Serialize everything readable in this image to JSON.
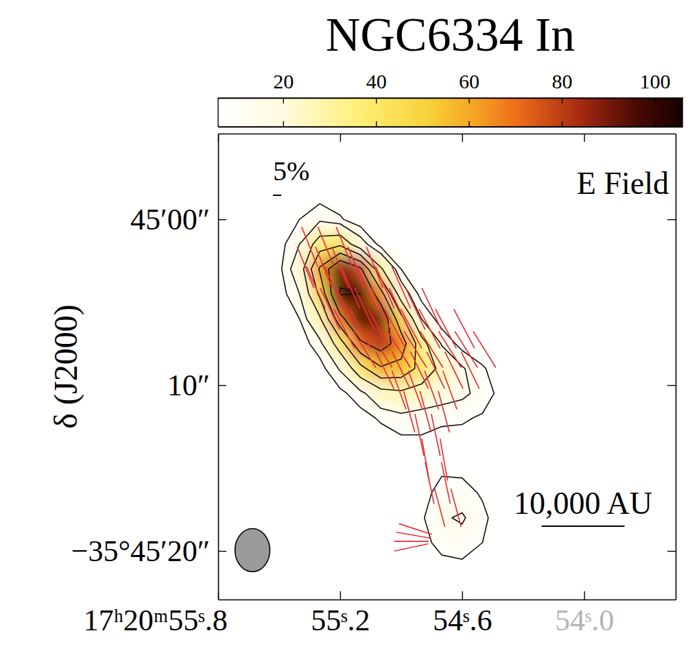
{
  "chart_data": {
    "type": "heatmap",
    "title": "NGC6334 In",
    "y_label": "δ (J2000)",
    "annotation": "E Field",
    "vector_scale": {
      "label": "5%",
      "value": 5
    },
    "scale_bar": {
      "label": "10,000 AU",
      "length": 5.0
    },
    "beam": {
      "major": 2.6,
      "minor": 2.1
    },
    "xlim": [
      55.8,
      53.55
    ],
    "ylim": [
      -5.17,
      22.93
    ],
    "xticks": [
      {
        "value": 55.8,
        "label": "17ʰ20ᵐ55ˢ.8"
      },
      {
        "value": 55.2,
        "label": "55ˢ.2"
      },
      {
        "value": 54.6,
        "label": "54ˢ.6"
      },
      {
        "value": 54.0,
        "label": "54ˢ.0"
      }
    ],
    "yticks": [
      {
        "value": 0,
        "label": "45′00″"
      },
      {
        "value": 10,
        "label": "10″"
      },
      {
        "value": 20,
        "label": "−35°45′20″"
      }
    ],
    "colorbar": {
      "range": [
        6,
        106
      ],
      "ticks": [
        20,
        40,
        60,
        80,
        100
      ]
    },
    "intensity": {
      "ra": [
        55.5,
        55.4,
        55.3,
        55.2,
        55.1,
        55.0,
        54.9,
        54.8,
        54.7,
        54.6,
        54.5,
        54.4
      ],
      "dec": [
        -3,
        -1.5,
        0,
        1.5,
        3,
        4.5,
        6,
        7.5,
        9,
        10.5,
        12,
        13.5,
        15,
        16.5,
        18,
        19.5,
        21,
        22.5
      ],
      "values": [
        [
          1,
          1,
          1,
          1,
          1,
          0,
          0,
          0,
          0,
          0,
          0,
          0
        ],
        [
          2,
          4,
          5,
          3,
          1,
          0,
          0,
          0,
          0,
          0,
          0,
          0
        ],
        [
          3,
          8,
          13,
          9,
          3,
          1,
          0,
          0,
          0,
          0,
          0,
          0
        ],
        [
          5,
          15,
          38,
          42,
          20,
          5,
          1,
          0,
          0,
          0,
          0,
          0
        ],
        [
          6,
          22,
          62,
          92,
          78,
          32,
          8,
          2,
          0,
          0,
          0,
          0
        ],
        [
          4,
          15,
          48,
          96,
          95,
          66,
          22,
          5,
          1,
          0,
          0,
          0
        ],
        [
          2,
          8,
          28,
          70,
          94,
          88,
          50,
          15,
          4,
          1,
          0,
          0
        ],
        [
          1,
          4,
          12,
          38,
          72,
          82,
          68,
          36,
          14,
          5,
          2,
          0
        ],
        [
          0,
          2,
          5,
          16,
          40,
          58,
          55,
          40,
          26,
          16,
          9,
          3
        ],
        [
          0,
          1,
          2,
          6,
          12,
          24,
          27,
          24,
          20,
          17,
          12,
          5
        ],
        [
          0,
          0,
          1,
          2,
          5,
          9,
          12,
          10,
          9,
          9,
          7,
          3
        ],
        [
          0,
          0,
          0,
          1,
          2,
          4,
          6,
          7,
          6,
          5,
          3,
          1
        ],
        [
          0,
          0,
          0,
          0,
          1,
          2,
          4,
          6,
          7,
          6,
          3,
          1
        ],
        [
          0,
          0,
          0,
          0,
          0,
          1,
          3,
          6,
          10,
          11,
          7,
          2
        ],
        [
          0,
          0,
          0,
          0,
          0,
          1,
          3,
          7,
          14,
          16,
          10,
          3
        ],
        [
          0,
          0,
          0,
          0,
          0,
          1,
          2,
          5,
          11,
          12,
          8,
          2
        ],
        [
          0,
          0,
          0,
          0,
          0,
          0,
          1,
          3,
          5,
          6,
          4,
          1
        ],
        [
          0,
          0,
          0,
          0,
          0,
          0,
          0,
          1,
          2,
          2,
          1,
          0
        ]
      ]
    },
    "contours": {
      "levels": [
        8,
        15,
        30,
        45,
        60,
        75,
        95
      ]
    },
    "vectors": {
      "color": "#e8303a",
      "ra": [
        55.35,
        55.27,
        55.18,
        55.37,
        55.28,
        55.2,
        55.12,
        55.03,
        55.32,
        55.23,
        55.15,
        55.07,
        54.98,
        54.9,
        55.25,
        55.17,
        55.08,
        55.0,
        54.91,
        54.83,
        54.75,
        55.18,
        55.1,
        55.01,
        54.93,
        54.85,
        54.76,
        54.68,
        54.59,
        55.08,
        55.0,
        54.91,
        54.83,
        54.75,
        54.66,
        54.58,
        54.49,
        54.98,
        54.9,
        54.81,
        54.73,
        54.64,
        54.56,
        54.91,
        54.83,
        54.75,
        54.66,
        54.86,
        54.78,
        54.69,
        54.81,
        54.73,
        54.78,
        54.69,
        54.76,
        54.68,
        54.71,
        54.63,
        54.83,
        54.84,
        54.85,
        54.85
      ],
      "dec": [
        1.65,
        1.65,
        1.65,
        2.9,
        2.9,
        2.9,
        2.9,
        2.9,
        4.1,
        4.1,
        4.1,
        4.1,
        4.1,
        4.1,
        5.4,
        5.4,
        5.4,
        5.4,
        5.4,
        5.4,
        5.4,
        6.6,
        6.6,
        6.6,
        6.6,
        6.6,
        6.6,
        6.6,
        6.6,
        7.85,
        7.85,
        7.85,
        7.85,
        7.85,
        7.85,
        7.85,
        7.85,
        9.1,
        9.1,
        9.1,
        9.1,
        9.1,
        9.1,
        10.3,
        10.3,
        10.3,
        10.3,
        11.6,
        11.6,
        11.6,
        13.0,
        13.0,
        14.5,
        14.5,
        15.9,
        15.9,
        17.4,
        17.4,
        18.68,
        19.05,
        19.42,
        19.79
      ],
      "pa": [
        22,
        22,
        22,
        22,
        22,
        22,
        22,
        22,
        24,
        24,
        24,
        24,
        24,
        24,
        25,
        25,
        25,
        25,
        25,
        25,
        25,
        28,
        28,
        28,
        28,
        28,
        28,
        28,
        28,
        32,
        32,
        32,
        32,
        32,
        32,
        32,
        32,
        26,
        26,
        26,
        26,
        26,
        26,
        20,
        20,
        20,
        20,
        15,
        15,
        15,
        12,
        12,
        10,
        10,
        12,
        12,
        15,
        15,
        72,
        80,
        90,
        102
      ],
      "pct": [
        26,
        26,
        26,
        27,
        27,
        27,
        27,
        27,
        28,
        28,
        28,
        28,
        28,
        28,
        28,
        28,
        28,
        28,
        28,
        28,
        28,
        27,
        27,
        27,
        27,
        27,
        27,
        27,
        27,
        26,
        26,
        26,
        26,
        26,
        26,
        26,
        26,
        25,
        25,
        25,
        25,
        25,
        25,
        25,
        25,
        25,
        25,
        26,
        26,
        26,
        26,
        26,
        26,
        26,
        26,
        26,
        24,
        24,
        21,
        21,
        21,
        21
      ]
    }
  }
}
